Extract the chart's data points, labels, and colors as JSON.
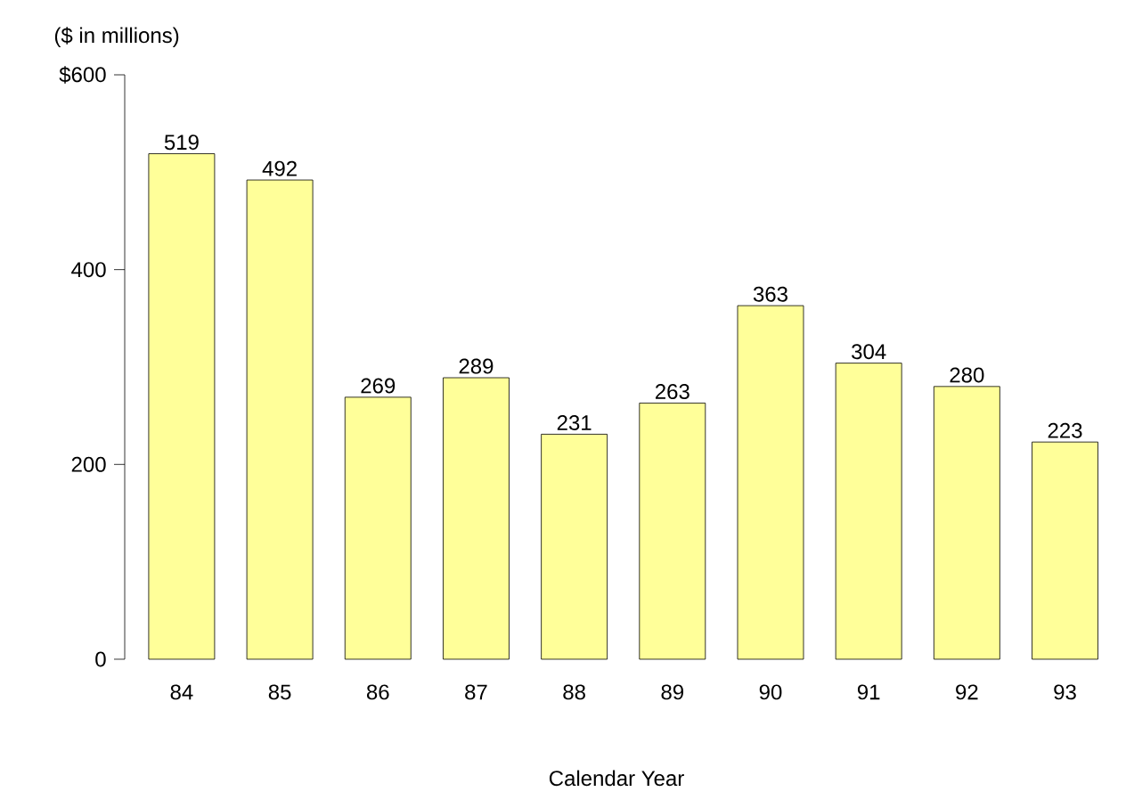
{
  "chart_data": {
    "type": "bar",
    "ylabel": "($ in millions)",
    "xlabel": "Calendar Year",
    "categories": [
      "84",
      "85",
      "86",
      "87",
      "88",
      "89",
      "90",
      "91",
      "92",
      "93"
    ],
    "values": [
      519,
      492,
      269,
      289,
      231,
      263,
      363,
      304,
      280,
      223
    ],
    "color": "#ffff99",
    "ylim": [
      0,
      600
    ],
    "yticks": [
      0,
      200,
      400,
      {
        "value": 600,
        "label": "$600"
      }
    ],
    "data_labels": true
  }
}
